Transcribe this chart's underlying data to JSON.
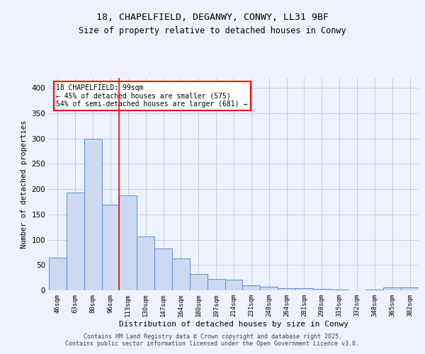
{
  "title1": "18, CHAPELFIELD, DEGANWY, CONWY, LL31 9BF",
  "title2": "Size of property relative to detached houses in Conwy",
  "xlabel": "Distribution of detached houses by size in Conwy",
  "ylabel": "Number of detached properties",
  "categories": [
    "46sqm",
    "63sqm",
    "80sqm",
    "96sqm",
    "113sqm",
    "130sqm",
    "147sqm",
    "164sqm",
    "180sqm",
    "197sqm",
    "214sqm",
    "231sqm",
    "248sqm",
    "264sqm",
    "281sqm",
    "298sqm",
    "315sqm",
    "332sqm",
    "348sqm",
    "365sqm",
    "382sqm"
  ],
  "values": [
    65,
    193,
    299,
    170,
    188,
    106,
    82,
    63,
    32,
    22,
    21,
    10,
    7,
    4,
    4,
    3,
    1,
    0,
    1,
    6,
    5
  ],
  "bar_color": "#ccd9f0",
  "bar_edge_color": "#5b8dd9",
  "redline_index": 3.5,
  "annotation_text": "18 CHAPELFIELD: 99sqm\n← 45% of detached houses are smaller (575)\n54% of semi-detached houses are larger (681) →",
  "annotation_box_color": "white",
  "annotation_box_edge": "red",
  "footer1": "Contains HM Land Registry data © Crown copyright and database right 2025.",
  "footer2": "Contains public sector information licensed under the Open Government Licence v3.0.",
  "bg_color": "#eef2ff",
  "grid_color": "#c0cce8",
  "ylim": [
    0,
    420
  ],
  "yticks": [
    0,
    50,
    100,
    150,
    200,
    250,
    300,
    350,
    400
  ]
}
